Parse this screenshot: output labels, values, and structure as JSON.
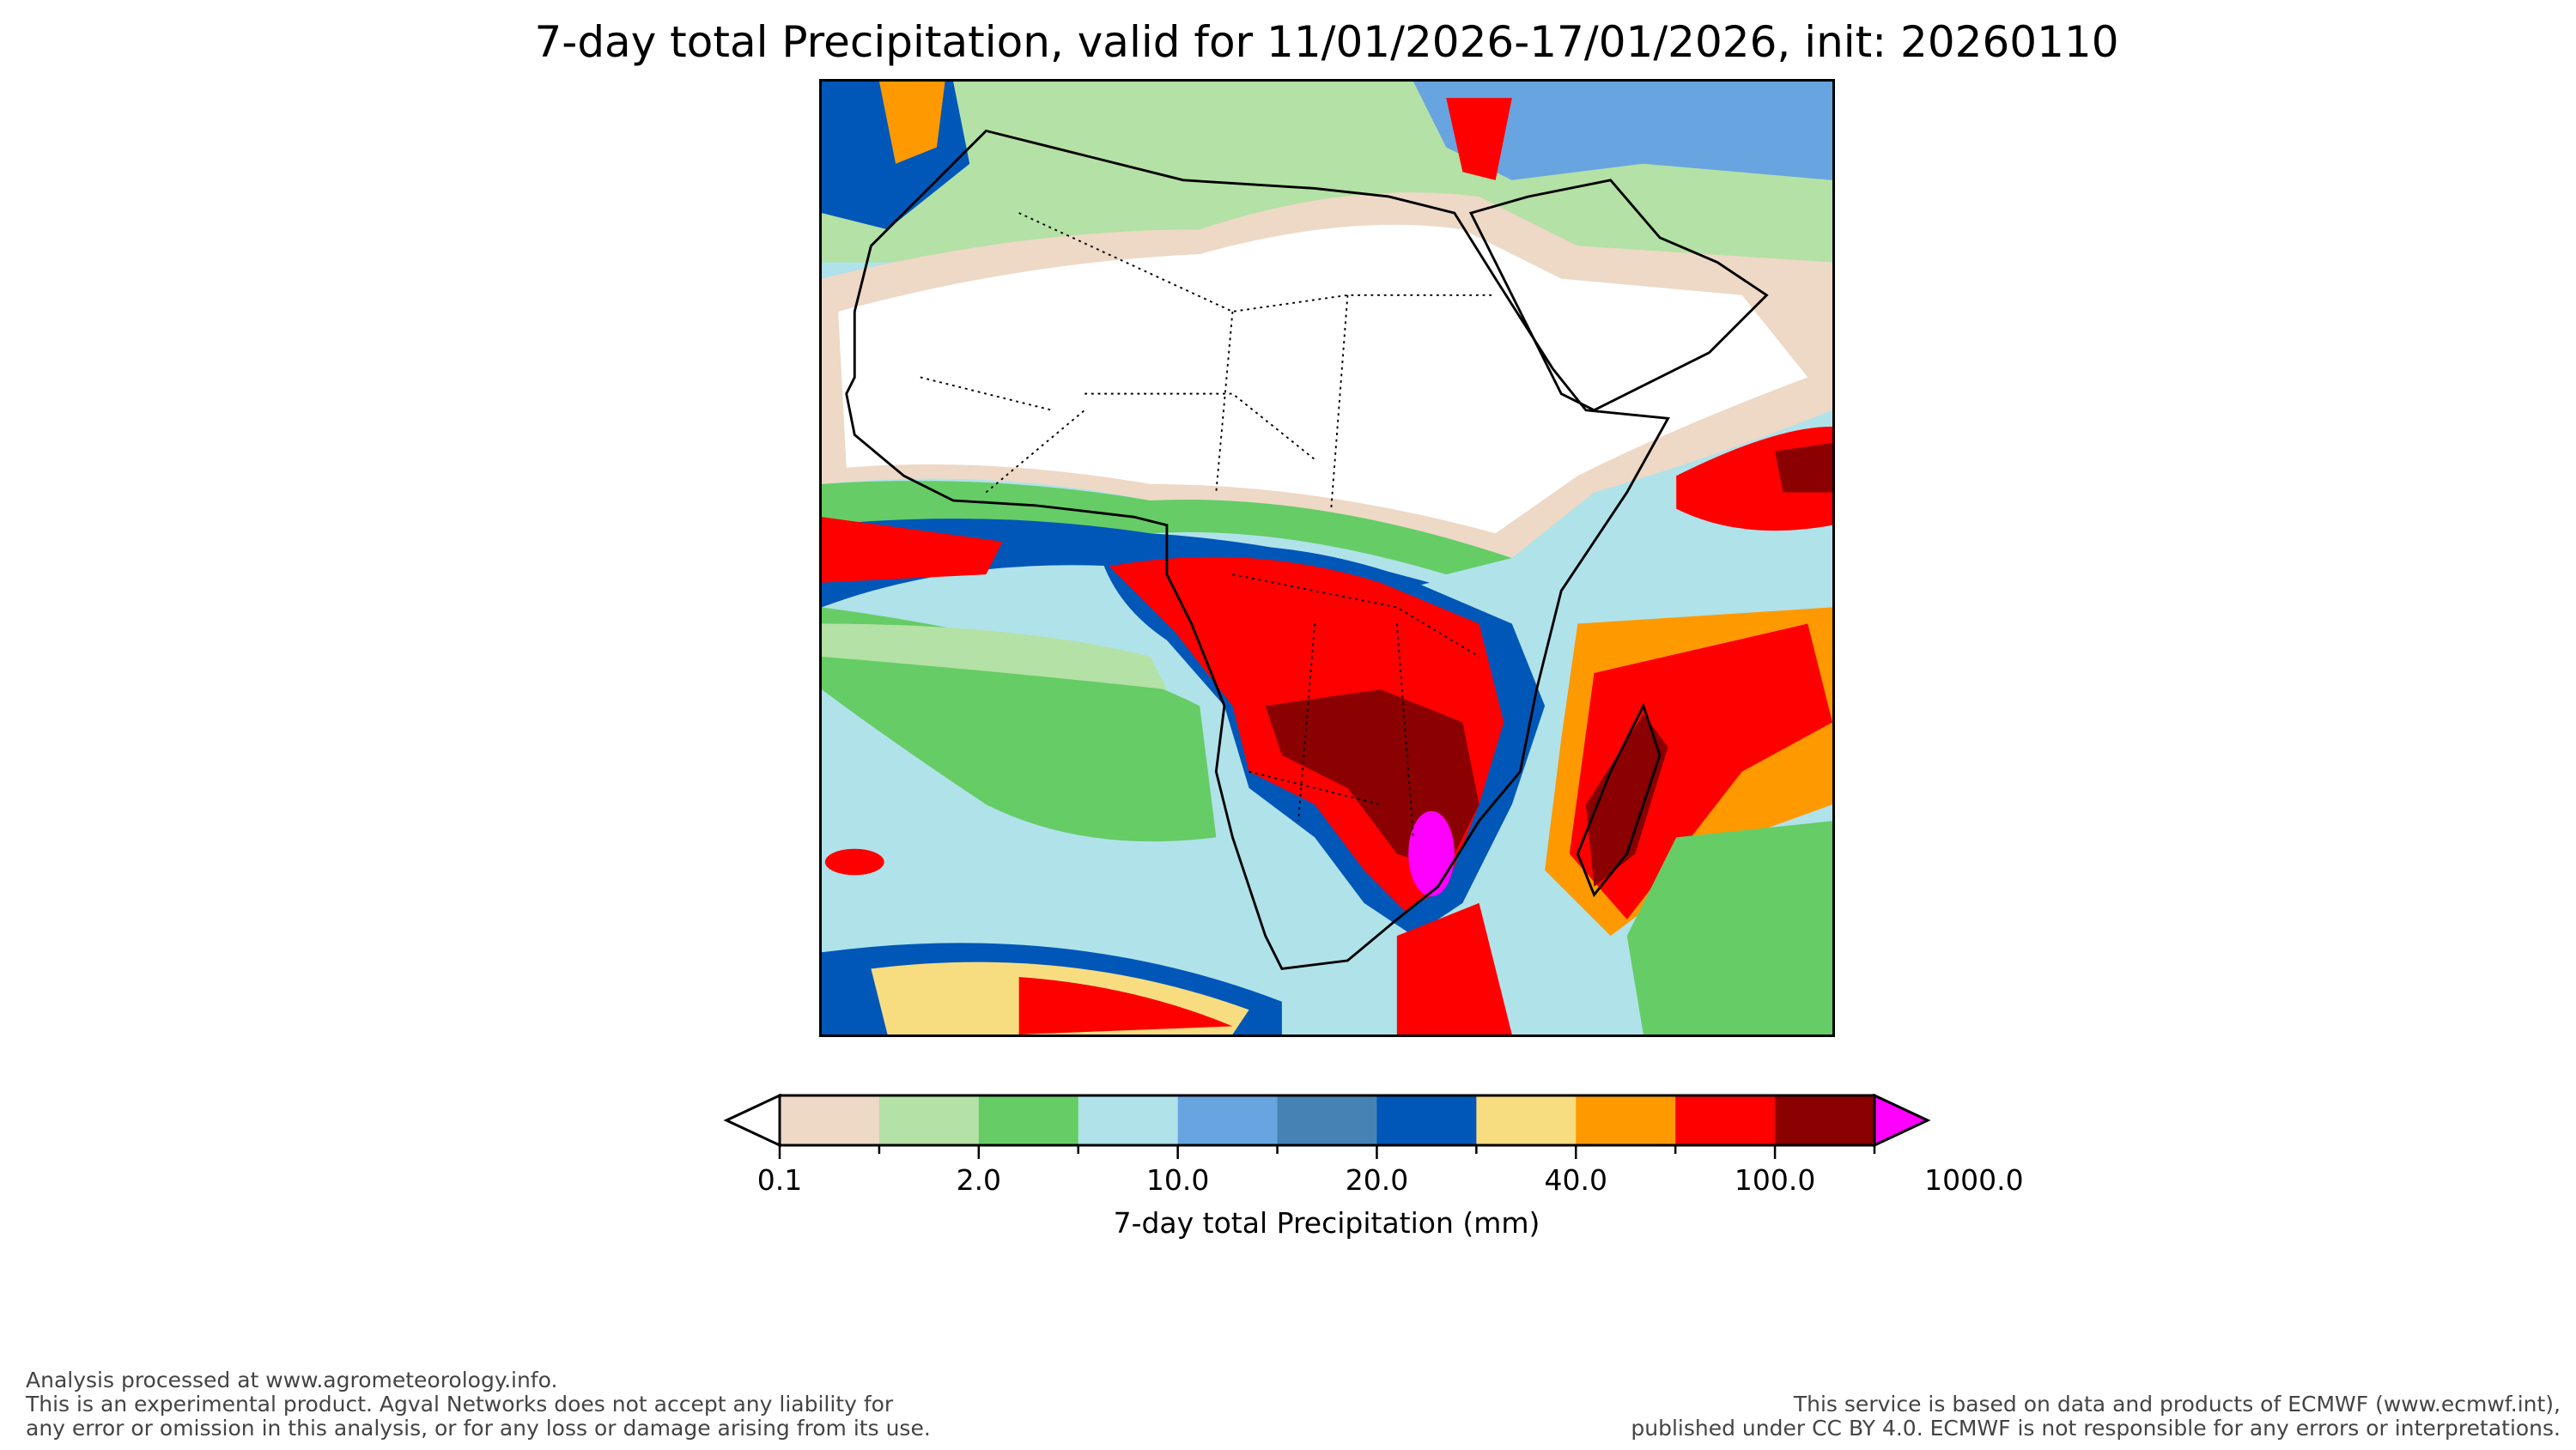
{
  "title": "7-day total Precipitation, valid for 11/01/2026-17/01/2026, init: 20260110",
  "colorbar": {
    "label": "7-day total Precipitation (mm)",
    "under_color": "#ffffff",
    "over_color": "#ff00ff",
    "colors": [
      "#eed8c6",
      "#b4e1a5",
      "#66cc66",
      "#b0e2ea",
      "#68a4e0",
      "#4682b4",
      "#0057b8",
      "#f7dd80",
      "#ff9900",
      "#ff0000",
      "#8b0000",
      "#ff00ff"
    ],
    "tick_labels": [
      "0.1",
      "2.0",
      "10.0",
      "20.0",
      "40.0",
      "100.0",
      "1000.0"
    ]
  },
  "footer": {
    "left": [
      "Analysis processed at www.agrometeorology.info.",
      "This is an experimental product. Agval Networks does not accept any liability for",
      "any error or omission in this analysis, or for any loss or damage arising from its use."
    ],
    "right": [
      "This service is based on data and products of ECMWF (www.ecmwf.int),",
      "published under CC BY 4.0. ECMWF is not responsible for any errors or interpretations."
    ]
  }
}
